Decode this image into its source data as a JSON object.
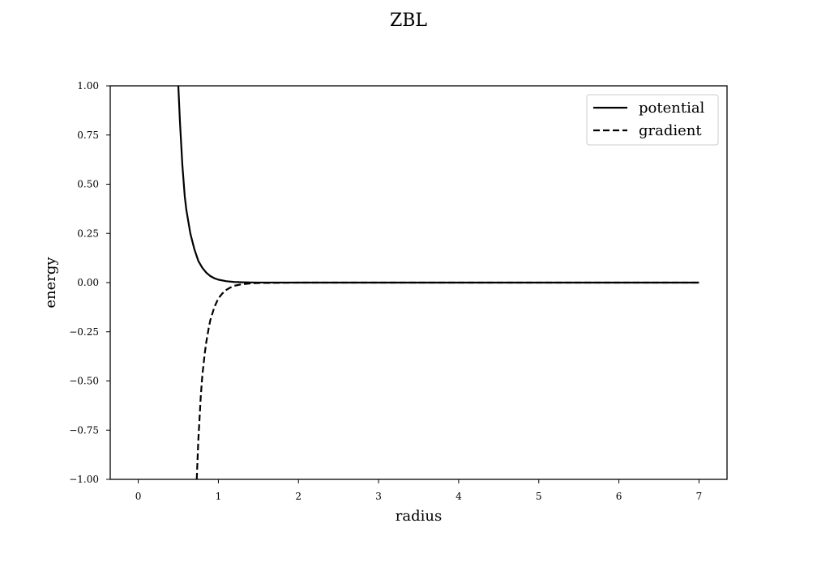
{
  "chart_data": {
    "type": "line",
    "title": "ZBL",
    "xlabel": "radius",
    "ylabel": "energy",
    "xlim": [
      -0.35,
      7.35
    ],
    "ylim": [
      -1.0,
      1.0
    ],
    "xticks": [
      0,
      1,
      2,
      3,
      4,
      5,
      6,
      7
    ],
    "xtick_labels": [
      "0",
      "1",
      "2",
      "3",
      "4",
      "5",
      "6",
      "7"
    ],
    "yticks": [
      -1.0,
      -0.75,
      -0.5,
      -0.25,
      0.0,
      0.25,
      0.5,
      0.75,
      1.0
    ],
    "ytick_labels": [
      "−1.00",
      "−0.75",
      "−0.50",
      "−0.25",
      "0.00",
      "0.25",
      "0.50",
      "0.75",
      "1.00"
    ],
    "grid": false,
    "legend_position": "top-right",
    "series": [
      {
        "name": "potential",
        "style": "solid",
        "color": "#000000",
        "x": [
          0.5,
          0.52,
          0.55,
          0.58,
          0.6,
          0.65,
          0.7,
          0.75,
          0.8,
          0.85,
          0.9,
          0.95,
          1.0,
          1.1,
          1.2,
          1.3,
          1.4,
          1.5,
          2.0,
          3.0,
          4.0,
          5.0,
          6.0,
          7.0
        ],
        "y": [
          1.0,
          0.82,
          0.6,
          0.44,
          0.37,
          0.25,
          0.17,
          0.11,
          0.075,
          0.05,
          0.033,
          0.022,
          0.015,
          0.007,
          0.003,
          0.0015,
          0.0007,
          0.0003,
          0.0,
          0.0,
          0.0,
          0.0,
          0.0,
          0.0
        ]
      },
      {
        "name": "gradient",
        "style": "dashed",
        "color": "#000000",
        "x": [
          0.73,
          0.75,
          0.78,
          0.8,
          0.83,
          0.85,
          0.88,
          0.9,
          0.95,
          1.0,
          1.05,
          1.1,
          1.15,
          1.2,
          1.3,
          1.4,
          1.5,
          2.0,
          3.0,
          4.0,
          5.0,
          6.0,
          7.0
        ],
        "y": [
          -1.0,
          -0.8,
          -0.58,
          -0.47,
          -0.36,
          -0.3,
          -0.23,
          -0.19,
          -0.125,
          -0.08,
          -0.055,
          -0.037,
          -0.025,
          -0.016,
          -0.008,
          -0.004,
          -0.002,
          0.0,
          0.0,
          0.0,
          0.0,
          0.0,
          0.0
        ]
      }
    ]
  }
}
